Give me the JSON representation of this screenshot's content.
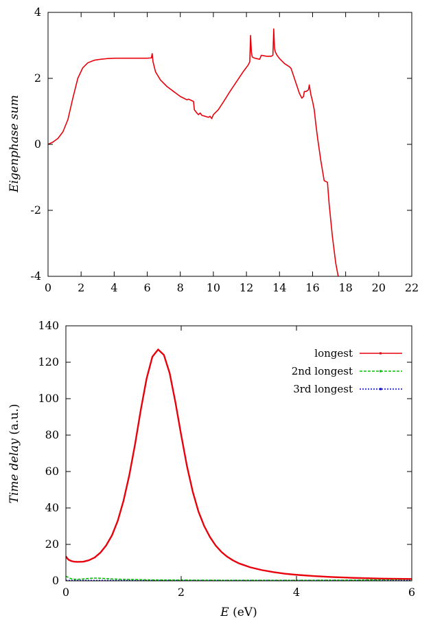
{
  "chart_data": [
    {
      "type": "line",
      "title": "",
      "xlabel": "",
      "ylabel": "Eigenphase sum",
      "xlim": [
        0,
        22
      ],
      "ylim": [
        -4,
        4
      ],
      "xticks": [
        "0",
        "2",
        "4",
        "6",
        "8",
        "10",
        "12",
        "14",
        "16",
        "18",
        "20",
        "22"
      ],
      "yticks": [
        "-4",
        "-2",
        "0",
        "2",
        "4"
      ],
      "grid": false,
      "series": [
        {
          "color": "#e8000b",
          "x": [
            0.0,
            0.3,
            0.6,
            0.9,
            1.2,
            1.5,
            1.8,
            2.1,
            2.4,
            2.8,
            3.2,
            3.6,
            4.0,
            4.5,
            5.0,
            5.5,
            6.0,
            6.25,
            6.3,
            6.35,
            6.5,
            6.8,
            7.2,
            7.6,
            8.0,
            8.4,
            8.5,
            8.8,
            8.85,
            9.0,
            9.1,
            9.2,
            9.3,
            9.5,
            9.7,
            9.8,
            9.9,
            10.0,
            10.3,
            10.6,
            11.0,
            11.4,
            11.8,
            12.1,
            12.2,
            12.25,
            12.3,
            12.35,
            12.45,
            12.6,
            12.8,
            12.9,
            13.2,
            13.5,
            13.6,
            13.65,
            13.7,
            13.75,
            13.85,
            14.0,
            14.3,
            14.6,
            14.7,
            14.9,
            15.2,
            15.35,
            15.45,
            15.5,
            15.6,
            15.75,
            15.8,
            15.9,
            16.0,
            16.1,
            16.2,
            16.3,
            16.5,
            16.7,
            16.9,
            17.0,
            17.2,
            17.4,
            17.55
          ],
          "values": [
            0.0,
            0.07,
            0.18,
            0.38,
            0.75,
            1.4,
            2.0,
            2.32,
            2.47,
            2.55,
            2.58,
            2.6,
            2.61,
            2.61,
            2.61,
            2.61,
            2.61,
            2.62,
            2.75,
            2.5,
            2.2,
            1.95,
            1.75,
            1.6,
            1.45,
            1.35,
            1.37,
            1.3,
            1.05,
            0.95,
            0.9,
            0.95,
            0.88,
            0.85,
            0.82,
            0.85,
            0.78,
            0.9,
            1.05,
            1.28,
            1.6,
            1.9,
            2.2,
            2.4,
            2.5,
            3.3,
            2.8,
            2.65,
            2.62,
            2.6,
            2.58,
            2.7,
            2.67,
            2.67,
            2.7,
            3.5,
            2.9,
            2.8,
            2.7,
            2.6,
            2.45,
            2.35,
            2.3,
            2.0,
            1.55,
            1.4,
            1.45,
            1.6,
            1.6,
            1.65,
            1.8,
            1.5,
            1.3,
            1.05,
            0.6,
            0.2,
            -0.5,
            -1.1,
            -1.15,
            -1.8,
            -2.8,
            -3.6,
            -4.0
          ]
        }
      ]
    },
    {
      "type": "line",
      "title": "",
      "xlabel": "E (eV)",
      "ylabel": "Time delay (a.u.)",
      "xlim": [
        0,
        6
      ],
      "ylim": [
        0,
        140
      ],
      "xticks": [
        "0",
        "2",
        "4",
        "6"
      ],
      "yticks": [
        "0",
        "20",
        "40",
        "60",
        "80",
        "100",
        "120",
        "140"
      ],
      "grid": false,
      "legend_position": "top-right",
      "series": [
        {
          "name": "longest",
          "color": "#e8000b",
          "x": [
            0.0,
            0.02,
            0.05,
            0.1,
            0.15,
            0.2,
            0.3,
            0.4,
            0.5,
            0.6,
            0.7,
            0.8,
            0.9,
            1.0,
            1.1,
            1.2,
            1.3,
            1.4,
            1.5,
            1.6,
            1.7,
            1.8,
            1.9,
            2.0,
            2.1,
            2.2,
            2.3,
            2.4,
            2.5,
            2.6,
            2.7,
            2.8,
            2.9,
            3.0,
            3.2,
            3.4,
            3.6,
            3.8,
            4.0,
            4.3,
            4.6,
            5.0,
            5.5,
            6.0
          ],
          "values": [
            13.5,
            12.5,
            11.5,
            10.8,
            10.5,
            10.4,
            10.5,
            11.3,
            12.8,
            15.5,
            19.5,
            25.0,
            33.0,
            44.0,
            58.0,
            75.0,
            94.0,
            111.0,
            123.0,
            127.0,
            124.0,
            114.0,
            98.0,
            80.0,
            63.0,
            49.0,
            38.0,
            30.0,
            24.0,
            19.3,
            15.8,
            13.2,
            11.2,
            9.6,
            7.4,
            5.9,
            4.8,
            3.9,
            3.3,
            2.6,
            2.1,
            1.6,
            1.2,
            1.0
          ]
        },
        {
          "name": "2nd longest",
          "color": "#00c000",
          "x": [
            0.0,
            0.1,
            0.2,
            0.3,
            0.4,
            0.5,
            0.6,
            0.8,
            1.0,
            1.5,
            2.0,
            3.0,
            4.0,
            5.0,
            6.0
          ],
          "values": [
            2.5,
            1.0,
            0.8,
            1.0,
            1.3,
            1.5,
            1.4,
            1.0,
            0.8,
            0.5,
            0.4,
            0.3,
            0.3,
            0.4,
            0.8
          ]
        },
        {
          "name": "3rd longest",
          "color": "#0000d0",
          "x": [
            0.0,
            1.0,
            2.0,
            3.0,
            4.0,
            5.0,
            6.0
          ],
          "values": [
            0.2,
            0.2,
            0.2,
            0.2,
            0.2,
            0.2,
            0.2
          ]
        }
      ]
    }
  ]
}
